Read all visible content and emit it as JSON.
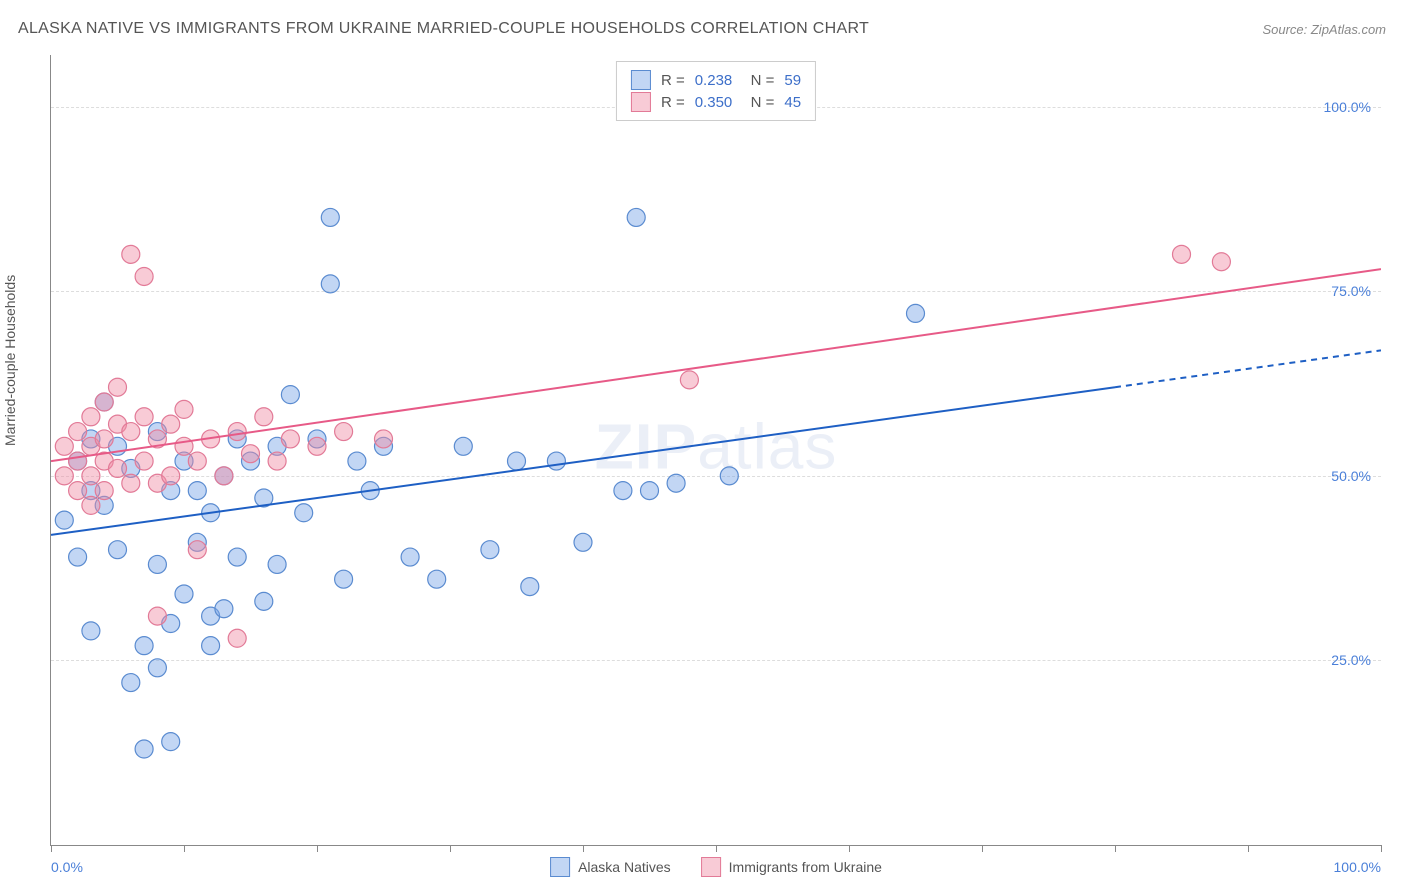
{
  "title": "ALASKA NATIVE VS IMMIGRANTS FROM UKRAINE MARRIED-COUPLE HOUSEHOLDS CORRELATION CHART",
  "source": "Source: ZipAtlas.com",
  "watermark": "ZIPatlas",
  "y_axis_label": "Married-couple Households",
  "chart": {
    "type": "scatter",
    "background_color": "#ffffff",
    "grid_color": "#dddddd",
    "axis_color": "#888888",
    "tick_label_color": "#4a7fd8",
    "xlim": [
      0,
      100
    ],
    "ylim": [
      0,
      107
    ],
    "x_ticks": [
      0,
      50,
      100
    ],
    "x_tick_labels": [
      "0.0%",
      "",
      "100.0%"
    ],
    "x_minor_ticks": [
      10,
      20,
      30,
      40,
      60,
      70,
      80,
      90
    ],
    "y_ticks": [
      25,
      50,
      75,
      100
    ],
    "y_tick_labels": [
      "25.0%",
      "50.0%",
      "75.0%",
      "100.0%"
    ],
    "marker_radius": 9,
    "marker_stroke_width": 1.2,
    "line_width": 2,
    "series": [
      {
        "name": "Alaska Natives",
        "fill_color": "rgba(120,165,230,0.45)",
        "stroke_color": "#5a8bd0",
        "line_color": "#1e5fc4",
        "r_value": "0.238",
        "n_value": "59",
        "regression": {
          "x1": 0,
          "y1": 42,
          "x2": 100,
          "y2": 67,
          "dash_from_x": 80
        },
        "points": [
          [
            1,
            44
          ],
          [
            2,
            52
          ],
          [
            2,
            39
          ],
          [
            3,
            48
          ],
          [
            3,
            55
          ],
          [
            3,
            29
          ],
          [
            4,
            60
          ],
          [
            4,
            46
          ],
          [
            5,
            40
          ],
          [
            5,
            54
          ],
          [
            6,
            22
          ],
          [
            6,
            51
          ],
          [
            7,
            27
          ],
          [
            7,
            13
          ],
          [
            8,
            56
          ],
          [
            8,
            38
          ],
          [
            8,
            24
          ],
          [
            9,
            48
          ],
          [
            9,
            30
          ],
          [
            9,
            14
          ],
          [
            10,
            52
          ],
          [
            10,
            34
          ],
          [
            11,
            41
          ],
          [
            11,
            48
          ],
          [
            12,
            45
          ],
          [
            12,
            31
          ],
          [
            12,
            27
          ],
          [
            13,
            50
          ],
          [
            13,
            32
          ],
          [
            14,
            39
          ],
          [
            14,
            55
          ],
          [
            15,
            52
          ],
          [
            16,
            33
          ],
          [
            16,
            47
          ],
          [
            17,
            54
          ],
          [
            17,
            38
          ],
          [
            18,
            61
          ],
          [
            19,
            45
          ],
          [
            20,
            55
          ],
          [
            21,
            85
          ],
          [
            21,
            76
          ],
          [
            22,
            36
          ],
          [
            23,
            52
          ],
          [
            24,
            48
          ],
          [
            25,
            54
          ],
          [
            27,
            39
          ],
          [
            29,
            36
          ],
          [
            31,
            54
          ],
          [
            33,
            40
          ],
          [
            35,
            52
          ],
          [
            36,
            35
          ],
          [
            38,
            52
          ],
          [
            40,
            41
          ],
          [
            43,
            48
          ],
          [
            44,
            85
          ],
          [
            45,
            48
          ],
          [
            47,
            49
          ],
          [
            51,
            50
          ],
          [
            65,
            72
          ]
        ]
      },
      {
        "name": "Immigrants from Ukraine",
        "fill_color": "rgba(240,140,165,0.45)",
        "stroke_color": "#e27a97",
        "line_color": "#e75a87",
        "r_value": "0.350",
        "n_value": "45",
        "regression": {
          "x1": 0,
          "y1": 52,
          "x2": 100,
          "y2": 78,
          "dash_from_x": 100
        },
        "points": [
          [
            1,
            54
          ],
          [
            1,
            50
          ],
          [
            2,
            56
          ],
          [
            2,
            48
          ],
          [
            2,
            52
          ],
          [
            3,
            58
          ],
          [
            3,
            50
          ],
          [
            3,
            54
          ],
          [
            3,
            46
          ],
          [
            4,
            55
          ],
          [
            4,
            60
          ],
          [
            4,
            52
          ],
          [
            4,
            48
          ],
          [
            5,
            57
          ],
          [
            5,
            51
          ],
          [
            5,
            62
          ],
          [
            6,
            56
          ],
          [
            6,
            49
          ],
          [
            6,
            80
          ],
          [
            7,
            58
          ],
          [
            7,
            52
          ],
          [
            7,
            77
          ],
          [
            8,
            55
          ],
          [
            8,
            49
          ],
          [
            8,
            31
          ],
          [
            9,
            57
          ],
          [
            9,
            50
          ],
          [
            10,
            54
          ],
          [
            10,
            59
          ],
          [
            11,
            52
          ],
          [
            11,
            40
          ],
          [
            12,
            55
          ],
          [
            13,
            50
          ],
          [
            14,
            56
          ],
          [
            14,
            28
          ],
          [
            15,
            53
          ],
          [
            16,
            58
          ],
          [
            17,
            52
          ],
          [
            18,
            55
          ],
          [
            20,
            54
          ],
          [
            22,
            56
          ],
          [
            25,
            55
          ],
          [
            48,
            63
          ],
          [
            85,
            80
          ],
          [
            88,
            79
          ]
        ]
      }
    ]
  },
  "legend_bottom": [
    {
      "label": "Alaska Natives",
      "fill": "rgba(120,165,230,0.45)",
      "stroke": "#5a8bd0"
    },
    {
      "label": "Immigrants from Ukraine",
      "fill": "rgba(240,140,165,0.45)",
      "stroke": "#e27a97"
    }
  ]
}
